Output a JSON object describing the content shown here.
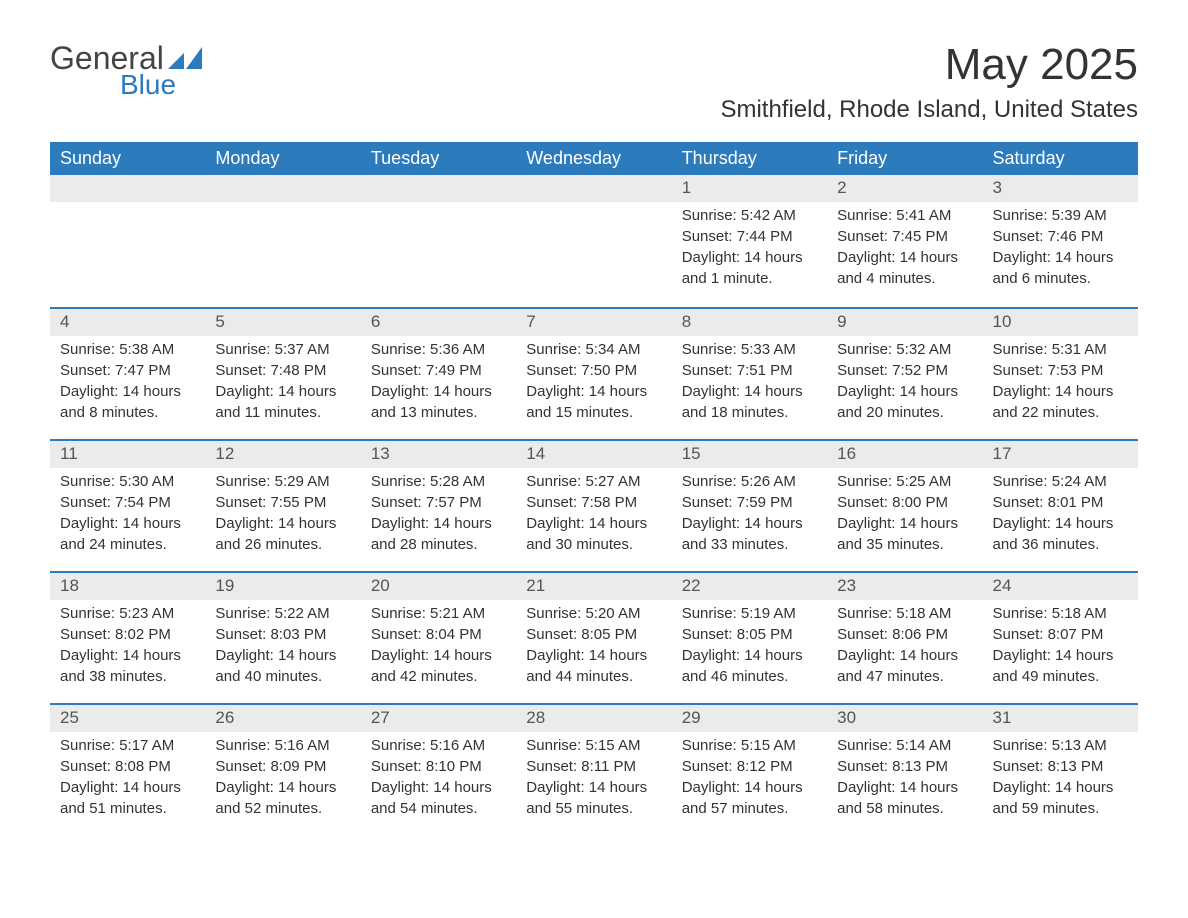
{
  "logo": {
    "text_general": "General",
    "text_blue": "Blue",
    "icon_color": "#2b7bbd"
  },
  "title": "May 2025",
  "location": "Smithfield, Rhode Island, United States",
  "colors": {
    "header_bg": "#2b7bbd",
    "header_text": "#ffffff",
    "daynum_bg": "#ebebeb",
    "body_text": "#333333",
    "border": "#2b7bbd"
  },
  "weekdays": [
    "Sunday",
    "Monday",
    "Tuesday",
    "Wednesday",
    "Thursday",
    "Friday",
    "Saturday"
  ],
  "weeks": [
    [
      null,
      null,
      null,
      null,
      {
        "n": "1",
        "sunrise": "Sunrise: 5:42 AM",
        "sunset": "Sunset: 7:44 PM",
        "daylight": "Daylight: 14 hours and 1 minute."
      },
      {
        "n": "2",
        "sunrise": "Sunrise: 5:41 AM",
        "sunset": "Sunset: 7:45 PM",
        "daylight": "Daylight: 14 hours and 4 minutes."
      },
      {
        "n": "3",
        "sunrise": "Sunrise: 5:39 AM",
        "sunset": "Sunset: 7:46 PM",
        "daylight": "Daylight: 14 hours and 6 minutes."
      }
    ],
    [
      {
        "n": "4",
        "sunrise": "Sunrise: 5:38 AM",
        "sunset": "Sunset: 7:47 PM",
        "daylight": "Daylight: 14 hours and 8 minutes."
      },
      {
        "n": "5",
        "sunrise": "Sunrise: 5:37 AM",
        "sunset": "Sunset: 7:48 PM",
        "daylight": "Daylight: 14 hours and 11 minutes."
      },
      {
        "n": "6",
        "sunrise": "Sunrise: 5:36 AM",
        "sunset": "Sunset: 7:49 PM",
        "daylight": "Daylight: 14 hours and 13 minutes."
      },
      {
        "n": "7",
        "sunrise": "Sunrise: 5:34 AM",
        "sunset": "Sunset: 7:50 PM",
        "daylight": "Daylight: 14 hours and 15 minutes."
      },
      {
        "n": "8",
        "sunrise": "Sunrise: 5:33 AM",
        "sunset": "Sunset: 7:51 PM",
        "daylight": "Daylight: 14 hours and 18 minutes."
      },
      {
        "n": "9",
        "sunrise": "Sunrise: 5:32 AM",
        "sunset": "Sunset: 7:52 PM",
        "daylight": "Daylight: 14 hours and 20 minutes."
      },
      {
        "n": "10",
        "sunrise": "Sunrise: 5:31 AM",
        "sunset": "Sunset: 7:53 PM",
        "daylight": "Daylight: 14 hours and 22 minutes."
      }
    ],
    [
      {
        "n": "11",
        "sunrise": "Sunrise: 5:30 AM",
        "sunset": "Sunset: 7:54 PM",
        "daylight": "Daylight: 14 hours and 24 minutes."
      },
      {
        "n": "12",
        "sunrise": "Sunrise: 5:29 AM",
        "sunset": "Sunset: 7:55 PM",
        "daylight": "Daylight: 14 hours and 26 minutes."
      },
      {
        "n": "13",
        "sunrise": "Sunrise: 5:28 AM",
        "sunset": "Sunset: 7:57 PM",
        "daylight": "Daylight: 14 hours and 28 minutes."
      },
      {
        "n": "14",
        "sunrise": "Sunrise: 5:27 AM",
        "sunset": "Sunset: 7:58 PM",
        "daylight": "Daylight: 14 hours and 30 minutes."
      },
      {
        "n": "15",
        "sunrise": "Sunrise: 5:26 AM",
        "sunset": "Sunset: 7:59 PM",
        "daylight": "Daylight: 14 hours and 33 minutes."
      },
      {
        "n": "16",
        "sunrise": "Sunrise: 5:25 AM",
        "sunset": "Sunset: 8:00 PM",
        "daylight": "Daylight: 14 hours and 35 minutes."
      },
      {
        "n": "17",
        "sunrise": "Sunrise: 5:24 AM",
        "sunset": "Sunset: 8:01 PM",
        "daylight": "Daylight: 14 hours and 36 minutes."
      }
    ],
    [
      {
        "n": "18",
        "sunrise": "Sunrise: 5:23 AM",
        "sunset": "Sunset: 8:02 PM",
        "daylight": "Daylight: 14 hours and 38 minutes."
      },
      {
        "n": "19",
        "sunrise": "Sunrise: 5:22 AM",
        "sunset": "Sunset: 8:03 PM",
        "daylight": "Daylight: 14 hours and 40 minutes."
      },
      {
        "n": "20",
        "sunrise": "Sunrise: 5:21 AM",
        "sunset": "Sunset: 8:04 PM",
        "daylight": "Daylight: 14 hours and 42 minutes."
      },
      {
        "n": "21",
        "sunrise": "Sunrise: 5:20 AM",
        "sunset": "Sunset: 8:05 PM",
        "daylight": "Daylight: 14 hours and 44 minutes."
      },
      {
        "n": "22",
        "sunrise": "Sunrise: 5:19 AM",
        "sunset": "Sunset: 8:05 PM",
        "daylight": "Daylight: 14 hours and 46 minutes."
      },
      {
        "n": "23",
        "sunrise": "Sunrise: 5:18 AM",
        "sunset": "Sunset: 8:06 PM",
        "daylight": "Daylight: 14 hours and 47 minutes."
      },
      {
        "n": "24",
        "sunrise": "Sunrise: 5:18 AM",
        "sunset": "Sunset: 8:07 PM",
        "daylight": "Daylight: 14 hours and 49 minutes."
      }
    ],
    [
      {
        "n": "25",
        "sunrise": "Sunrise: 5:17 AM",
        "sunset": "Sunset: 8:08 PM",
        "daylight": "Daylight: 14 hours and 51 minutes."
      },
      {
        "n": "26",
        "sunrise": "Sunrise: 5:16 AM",
        "sunset": "Sunset: 8:09 PM",
        "daylight": "Daylight: 14 hours and 52 minutes."
      },
      {
        "n": "27",
        "sunrise": "Sunrise: 5:16 AM",
        "sunset": "Sunset: 8:10 PM",
        "daylight": "Daylight: 14 hours and 54 minutes."
      },
      {
        "n": "28",
        "sunrise": "Sunrise: 5:15 AM",
        "sunset": "Sunset: 8:11 PM",
        "daylight": "Daylight: 14 hours and 55 minutes."
      },
      {
        "n": "29",
        "sunrise": "Sunrise: 5:15 AM",
        "sunset": "Sunset: 8:12 PM",
        "daylight": "Daylight: 14 hours and 57 minutes."
      },
      {
        "n": "30",
        "sunrise": "Sunrise: 5:14 AM",
        "sunset": "Sunset: 8:13 PM",
        "daylight": "Daylight: 14 hours and 58 minutes."
      },
      {
        "n": "31",
        "sunrise": "Sunrise: 5:13 AM",
        "sunset": "Sunset: 8:13 PM",
        "daylight": "Daylight: 14 hours and 59 minutes."
      }
    ]
  ]
}
